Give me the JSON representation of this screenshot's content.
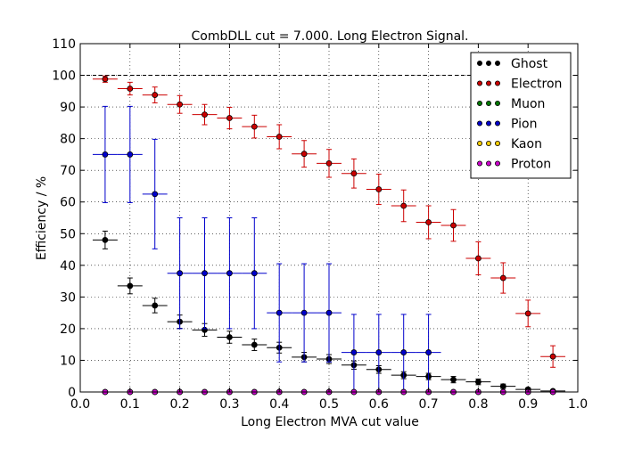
{
  "chart_data": {
    "type": "scatter",
    "title": "CombDLL cut = 7.000. Long Electron Signal.",
    "xlabel": "Long Electron MVA cut value",
    "ylabel": "Efficiency / %",
    "xlim": [
      0.0,
      1.0
    ],
    "ylim": [
      0,
      110
    ],
    "x_ticks": [
      "0.0",
      "0.1",
      "0.2",
      "0.3",
      "0.4",
      "0.5",
      "0.6",
      "0.7",
      "0.8",
      "0.9",
      "1.0"
    ],
    "y_ticks": [
      "0",
      "10",
      "20",
      "30",
      "40",
      "50",
      "60",
      "70",
      "80",
      "90",
      "100",
      "110"
    ],
    "grid": true,
    "legend_position": "top-right",
    "reference_line_y": 100,
    "x_bin_half_width": 0.025,
    "series": [
      {
        "name": "Ghost",
        "color": "#000000",
        "x": [
          0.05,
          0.1,
          0.15,
          0.2,
          0.25,
          0.3,
          0.35,
          0.4,
          0.45,
          0.5,
          0.55,
          0.6,
          0.65,
          0.7,
          0.75,
          0.8,
          0.85,
          0.9,
          0.95
        ],
        "y": [
          48,
          33.5,
          27.3,
          22.2,
          19.6,
          17.3,
          14.9,
          14.0,
          11.0,
          10.4,
          8.5,
          7.1,
          5.3,
          4.9,
          3.9,
          3.2,
          1.8,
          0.8,
          0.3
        ],
        "yerr": [
          2.8,
          2.5,
          2.3,
          2.1,
          2.0,
          1.9,
          1.8,
          1.7,
          1.5,
          1.4,
          1.3,
          1.2,
          1.1,
          1.0,
          1.0,
          0.9,
          0.7,
          0.5,
          0.3
        ]
      },
      {
        "name": "Electron",
        "color": "#cc0000",
        "x": [
          0.05,
          0.1,
          0.15,
          0.2,
          0.25,
          0.3,
          0.35,
          0.4,
          0.45,
          0.5,
          0.55,
          0.6,
          0.65,
          0.7,
          0.75,
          0.8,
          0.85,
          0.9,
          0.95
        ],
        "y": [
          98.8,
          95.8,
          93.8,
          90.8,
          87.6,
          86.5,
          83.8,
          80.6,
          75.2,
          72.2,
          69.0,
          64.0,
          58.8,
          53.6,
          52.6,
          42.2,
          36.0,
          24.8,
          11.2
        ],
        "yerr": [
          1.0,
          2.0,
          2.5,
          2.8,
          3.2,
          3.4,
          3.6,
          3.8,
          4.2,
          4.4,
          4.6,
          4.8,
          5.0,
          5.2,
          5.0,
          5.2,
          4.8,
          4.2,
          3.4
        ]
      },
      {
        "name": "Muon",
        "color": "#007700",
        "x": [
          0.05,
          0.1,
          0.15,
          0.2,
          0.25,
          0.3,
          0.35,
          0.4,
          0.45,
          0.5,
          0.55,
          0.6,
          0.65,
          0.7,
          0.75,
          0.8,
          0.85,
          0.9,
          0.95
        ],
        "y": [
          0,
          0,
          0,
          0,
          0,
          0,
          0,
          0,
          0,
          0,
          0,
          0,
          0,
          0,
          0,
          0,
          0,
          0,
          0
        ],
        "yerr": [
          0,
          0,
          0,
          0,
          0,
          0,
          0,
          0,
          0,
          0,
          0,
          0,
          0,
          0,
          0,
          0,
          0,
          0,
          0
        ]
      },
      {
        "name": "Pion",
        "color": "#0000cc",
        "x": [
          0.05,
          0.1,
          0.15,
          0.2,
          0.25,
          0.3,
          0.35,
          0.4,
          0.45,
          0.5,
          0.55,
          0.6,
          0.65,
          0.7
        ],
        "y": [
          75.0,
          75.0,
          62.5,
          37.5,
          37.5,
          37.5,
          37.5,
          25.0,
          25.0,
          25.0,
          12.5,
          12.5,
          12.5,
          12.5
        ],
        "yerr_low": [
          15.2,
          15.2,
          17.3,
          17.5,
          17.5,
          17.5,
          17.5,
          15.5,
          15.5,
          15.5,
          12.5,
          12.5,
          12.5,
          12.5
        ],
        "yerr_high": [
          15.2,
          15.2,
          17.3,
          17.5,
          17.5,
          17.5,
          17.5,
          15.5,
          15.5,
          15.5,
          12.0,
          12.0,
          12.0,
          12.0
        ]
      },
      {
        "name": "Kaon",
        "color": "#ffcc00",
        "x": [],
        "y": []
      },
      {
        "name": "Proton",
        "color": "#cc00cc",
        "x": [
          0.05,
          0.1,
          0.15,
          0.2,
          0.25,
          0.3,
          0.35,
          0.4,
          0.45,
          0.5,
          0.55,
          0.6,
          0.65,
          0.7,
          0.75,
          0.8,
          0.85,
          0.9,
          0.95
        ],
        "y": [
          0,
          0,
          0,
          0,
          0,
          0,
          0,
          0,
          0,
          0,
          0,
          0,
          0,
          0,
          0,
          0,
          0,
          0,
          0
        ],
        "yerr": [
          0,
          0,
          0,
          0,
          0,
          0,
          0,
          0,
          0,
          0,
          0,
          0,
          0,
          0,
          0,
          0,
          0,
          0,
          0
        ]
      }
    ]
  }
}
